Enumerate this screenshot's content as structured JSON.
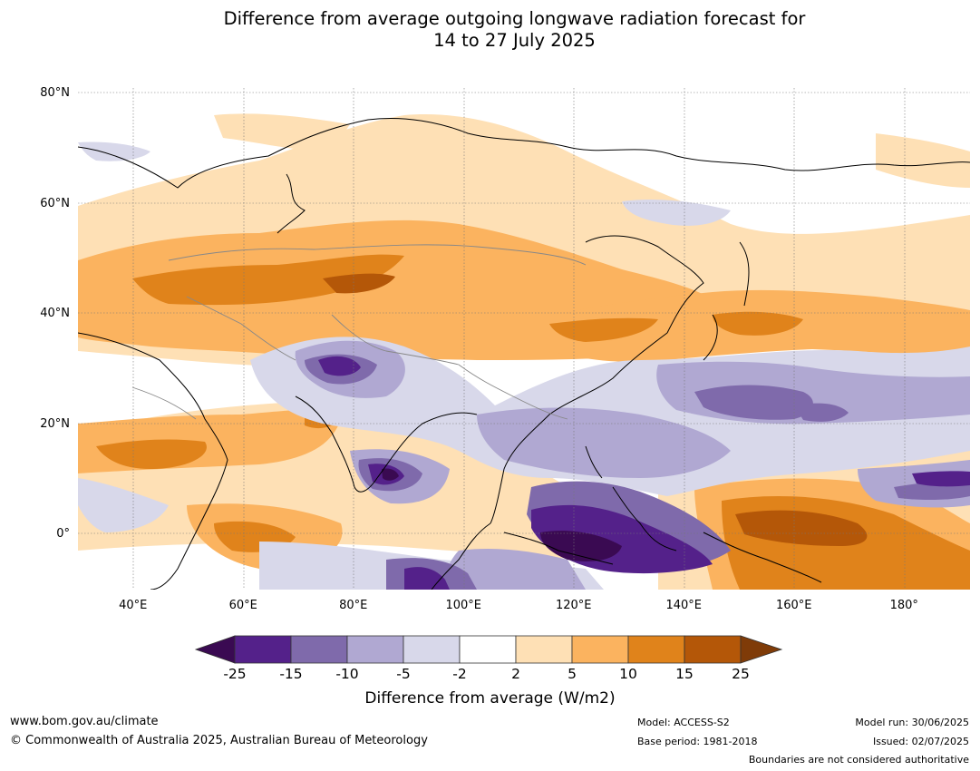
{
  "title_line1": "Difference from average outgoing longwave radiation forecast for",
  "title_line2": "14 to 27 July 2025",
  "lat_ticks": [
    {
      "label": "80°N",
      "lat": 80
    },
    {
      "label": "60°N",
      "lat": 60
    },
    {
      "label": "40°N",
      "lat": 40
    },
    {
      "label": "20°N",
      "lat": 20
    },
    {
      "label": "0°",
      "lat": 0
    }
  ],
  "lon_ticks": [
    {
      "label": "40°E",
      "lon": 40
    },
    {
      "label": "60°E",
      "lon": 60
    },
    {
      "label": "80°E",
      "lon": 80
    },
    {
      "label": "100°E",
      "lon": 100
    },
    {
      "label": "120°E",
      "lon": 120
    },
    {
      "label": "140°E",
      "lon": 140
    },
    {
      "label": "160°E",
      "lon": 160
    },
    {
      "label": "180°",
      "lon": 180
    }
  ],
  "colorbar": {
    "ticks": [
      "-25",
      "-15",
      "-10",
      "-5",
      "-2",
      "2",
      "5",
      "10",
      "15",
      "25"
    ],
    "colors": [
      "#3a0a52",
      "#54218a",
      "#7f6aab",
      "#b0a8d2",
      "#d8d8ea",
      "#ffffff",
      "#fee0b5",
      "#fbb35f",
      "#e0831b",
      "#b45708",
      "#7f3b08"
    ],
    "label": "Difference from average (W/m2)"
  },
  "footer": {
    "url": "www.bom.gov.au/climate",
    "copyright": "© Commonwealth of Australia 2025, Australian Bureau of Meteorology",
    "model": "Model: ACCESS-S2",
    "base_period": "Base period: 1981-2018",
    "model_run": "Model run: 30/06/2025",
    "issued": "Issued: 02/07/2025",
    "disclaimer": "Boundaries are not considered authoritative"
  }
}
